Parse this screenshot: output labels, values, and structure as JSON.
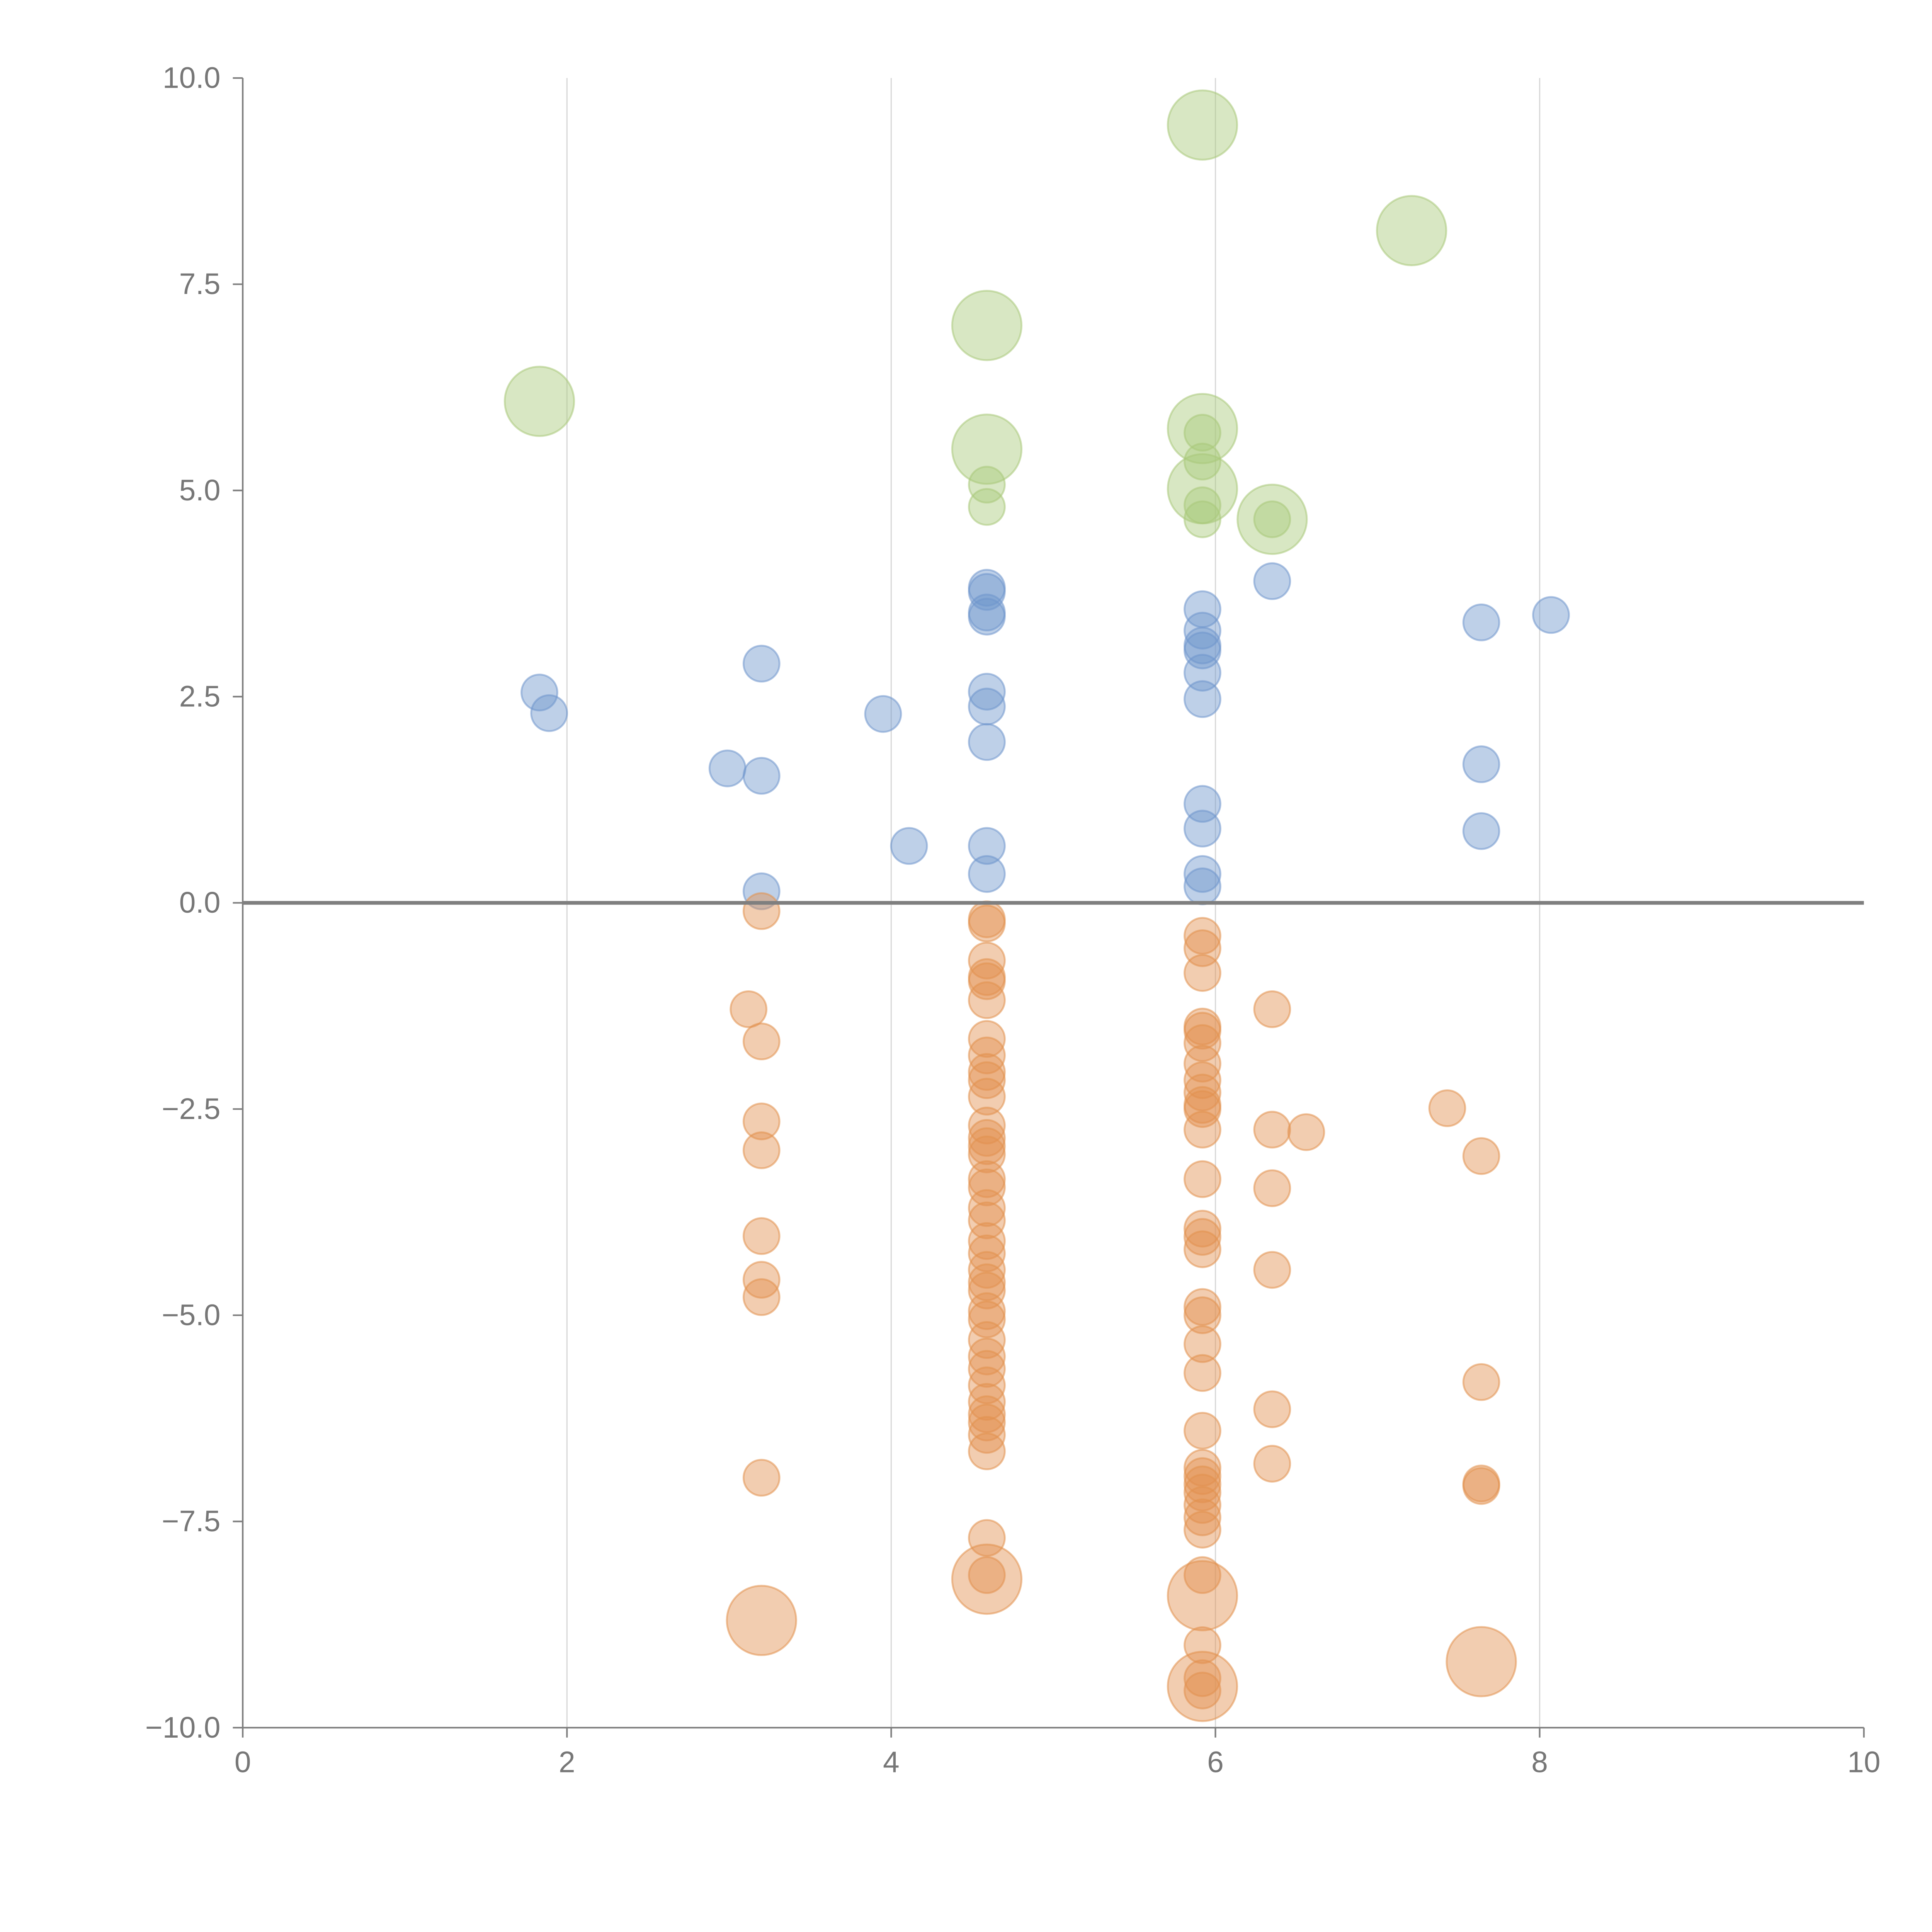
{
  "chart_data": {
    "type": "scatter",
    "title": "",
    "xlabel": "",
    "ylabel": "",
    "xlim": [
      0,
      10
    ],
    "ylim": [
      -10,
      10
    ],
    "x_ticks": [
      "0",
      "2",
      "4",
      "6",
      "8",
      "10"
    ],
    "x_tick_values": [
      0,
      2,
      4,
      6,
      8,
      10
    ],
    "y_ticks": [
      "10.0",
      "7.5",
      "5.0",
      "2.5",
      "0.0",
      "−2.5",
      "−5.0",
      "−7.5",
      "−10.0"
    ],
    "y_tick_values": [
      10,
      7.5,
      5,
      2.5,
      0,
      -2.5,
      -5,
      -7.5,
      -10
    ],
    "grid": "vertical gridlines at x ticks",
    "reference_line": {
      "y": 0
    },
    "legend": "none",
    "point_labels_note": "Large bubbles carry white annotation labels that are not legible against the background",
    "colors": {
      "positive": "#6f96cc",
      "highlight_positive": "#a9c97a",
      "negative": "#e2914f"
    },
    "series": [
      {
        "name": "positive",
        "color": "#6f96cc",
        "size": "small",
        "points": [
          [
            1.83,
            2.55
          ],
          [
            1.89,
            2.3
          ],
          [
            2.99,
            1.63
          ],
          [
            3.2,
            2.9
          ],
          [
            3.2,
            1.54
          ],
          [
            3.2,
            0.14
          ],
          [
            3.95,
            2.29
          ],
          [
            4.11,
            0.69
          ],
          [
            4.59,
            3.82
          ],
          [
            4.59,
            3.77
          ],
          [
            4.59,
            3.52
          ],
          [
            4.59,
            3.47
          ],
          [
            4.59,
            2.56
          ],
          [
            4.59,
            2.38
          ],
          [
            4.59,
            1.95
          ],
          [
            4.59,
            0.69
          ],
          [
            4.59,
            0.35
          ],
          [
            5.92,
            3.56
          ],
          [
            5.92,
            3.3
          ],
          [
            5.92,
            3.12
          ],
          [
            5.92,
            3.06
          ],
          [
            5.92,
            2.79
          ],
          [
            5.92,
            2.47
          ],
          [
            5.92,
            1.2
          ],
          [
            5.92,
            0.9
          ],
          [
            5.92,
            0.35
          ],
          [
            5.92,
            0.2
          ],
          [
            6.35,
            3.9
          ],
          [
            7.64,
            3.4
          ],
          [
            7.64,
            1.68
          ],
          [
            7.64,
            0.87
          ],
          [
            8.07,
            3.49
          ]
        ]
      },
      {
        "name": "highlight-positive-small",
        "color": "#a9c97a",
        "size": "small",
        "points": [
          [
            4.59,
            5.07
          ],
          [
            4.59,
            4.8
          ],
          [
            5.92,
            5.7
          ],
          [
            5.92,
            5.35
          ],
          [
            5.92,
            4.82
          ],
          [
            5.92,
            4.65
          ],
          [
            6.35,
            4.65
          ]
        ]
      },
      {
        "name": "highlight-positive-large",
        "color": "#a9c97a",
        "size": "large",
        "points": [
          [
            1.83,
            6.08
          ],
          [
            4.59,
            7.0
          ],
          [
            4.59,
            5.5
          ],
          [
            5.92,
            9.43
          ],
          [
            5.92,
            5.75
          ],
          [
            5.92,
            5.02
          ],
          [
            6.35,
            4.65
          ],
          [
            7.21,
            8.15
          ]
        ]
      },
      {
        "name": "negative",
        "color": "#e2914f",
        "size": "small",
        "points": [
          [
            3.2,
            -0.1
          ],
          [
            3.12,
            -1.29
          ],
          [
            3.2,
            -1.68
          ],
          [
            3.2,
            -2.65
          ],
          [
            3.2,
            -3.0
          ],
          [
            3.2,
            -4.04
          ],
          [
            3.2,
            -4.57
          ],
          [
            3.2,
            -4.78
          ],
          [
            3.2,
            -6.97
          ],
          [
            4.59,
            -0.2
          ],
          [
            4.59,
            -0.25
          ],
          [
            4.59,
            -0.7
          ],
          [
            4.59,
            -0.9
          ],
          [
            4.59,
            -0.95
          ],
          [
            4.59,
            -1.18
          ],
          [
            4.59,
            -1.65
          ],
          [
            4.59,
            -1.85
          ],
          [
            4.59,
            -2.05
          ],
          [
            4.59,
            -2.15
          ],
          [
            4.59,
            -2.35
          ],
          [
            4.59,
            -2.7
          ],
          [
            4.59,
            -2.85
          ],
          [
            4.59,
            -2.95
          ],
          [
            4.59,
            -3.05
          ],
          [
            4.59,
            -3.35
          ],
          [
            4.59,
            -3.45
          ],
          [
            4.59,
            -3.7
          ],
          [
            4.59,
            -3.85
          ],
          [
            4.59,
            -4.1
          ],
          [
            4.59,
            -4.25
          ],
          [
            4.59,
            -4.45
          ],
          [
            4.59,
            -4.6
          ],
          [
            4.59,
            -4.7
          ],
          [
            4.59,
            -4.95
          ],
          [
            4.59,
            -5.05
          ],
          [
            4.59,
            -5.3
          ],
          [
            4.59,
            -5.5
          ],
          [
            4.59,
            -5.65
          ],
          [
            4.59,
            -5.85
          ],
          [
            4.59,
            -6.05
          ],
          [
            4.59,
            -6.2
          ],
          [
            4.59,
            -6.3
          ],
          [
            4.59,
            -6.45
          ],
          [
            4.59,
            -6.65
          ],
          [
            4.59,
            -7.7
          ],
          [
            4.59,
            -8.15
          ],
          [
            5.92,
            -0.4
          ],
          [
            5.92,
            -0.55
          ],
          [
            5.92,
            -0.85
          ],
          [
            5.92,
            -1.5
          ],
          [
            5.92,
            -1.55
          ],
          [
            5.92,
            -1.7
          ],
          [
            5.92,
            -1.95
          ],
          [
            5.92,
            -2.15
          ],
          [
            5.92,
            -2.3
          ],
          [
            5.92,
            -2.45
          ],
          [
            5.92,
            -2.5
          ],
          [
            5.92,
            -2.75
          ],
          [
            5.92,
            -3.35
          ],
          [
            5.92,
            -3.95
          ],
          [
            5.92,
            -4.05
          ],
          [
            5.92,
            -4.2
          ],
          [
            5.92,
            -4.9
          ],
          [
            5.92,
            -5.0
          ],
          [
            5.92,
            -5.35
          ],
          [
            5.92,
            -5.7
          ],
          [
            5.92,
            -6.4
          ],
          [
            5.92,
            -6.85
          ],
          [
            5.92,
            -6.95
          ],
          [
            5.92,
            -7.05
          ],
          [
            5.92,
            -7.15
          ],
          [
            5.92,
            -7.3
          ],
          [
            5.92,
            -7.45
          ],
          [
            5.92,
            -7.6
          ],
          [
            5.92,
            -8.15
          ],
          [
            5.92,
            -9.0
          ],
          [
            5.92,
            -9.4
          ],
          [
            5.92,
            -9.55
          ],
          [
            6.35,
            -1.29
          ],
          [
            6.35,
            -2.75
          ],
          [
            6.56,
            -2.78
          ],
          [
            6.35,
            -3.46
          ],
          [
            6.35,
            -4.45
          ],
          [
            6.35,
            -6.14
          ],
          [
            6.35,
            -6.8
          ],
          [
            7.43,
            -2.49
          ],
          [
            7.64,
            -3.07
          ],
          [
            7.64,
            -5.81
          ],
          [
            7.64,
            -7.04
          ],
          [
            7.64,
            -7.07
          ]
        ]
      },
      {
        "name": "negative-large",
        "color": "#e2914f",
        "size": "large",
        "points": [
          [
            3.2,
            -8.7
          ],
          [
            4.59,
            -8.2
          ],
          [
            5.92,
            -8.4
          ],
          [
            5.92,
            -9.5
          ],
          [
            7.64,
            -9.2
          ]
        ]
      }
    ]
  }
}
